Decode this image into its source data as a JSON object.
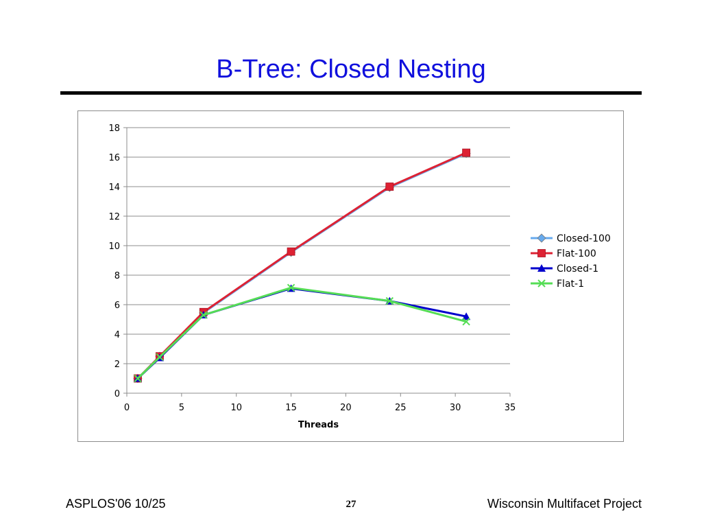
{
  "slide": {
    "title": "B-Tree: Closed Nesting",
    "footer_left": "ASPLOS'06 10/25",
    "page_number": "27",
    "footer_right": "Wisconsin Multifacet Project"
  },
  "colors": {
    "title": "#1010dd",
    "rule": "#000000"
  },
  "chart_data": {
    "type": "line",
    "title": "",
    "xlabel": "Threads",
    "ylabel": "",
    "xlim": [
      0,
      35
    ],
    "ylim": [
      0,
      18
    ],
    "xticks": [
      0,
      5,
      10,
      15,
      20,
      25,
      30,
      35
    ],
    "yticks": [
      0,
      2,
      4,
      6,
      8,
      10,
      12,
      14,
      16,
      18
    ],
    "grid": "horizontal",
    "legend_position": "right",
    "x": [
      1,
      3,
      7,
      15,
      24,
      31
    ],
    "series": [
      {
        "name": "Closed-100",
        "color": "#66aaee",
        "marker": "diamond",
        "values": [
          1,
          2.5,
          5.45,
          9.55,
          13.95,
          16.25
        ]
      },
      {
        "name": "Flat-100",
        "color": "#dd2233",
        "marker": "square",
        "values": [
          1,
          2.5,
          5.5,
          9.6,
          14.0,
          16.3
        ]
      },
      {
        "name": "Closed-1",
        "color": "#0000cc",
        "marker": "triangle",
        "values": [
          1,
          2.4,
          5.3,
          7.1,
          6.25,
          5.2
        ]
      },
      {
        "name": "Flat-1",
        "color": "#55dd55",
        "marker": "x",
        "values": [
          1,
          2.45,
          5.3,
          7.15,
          6.25,
          4.85
        ]
      }
    ]
  }
}
